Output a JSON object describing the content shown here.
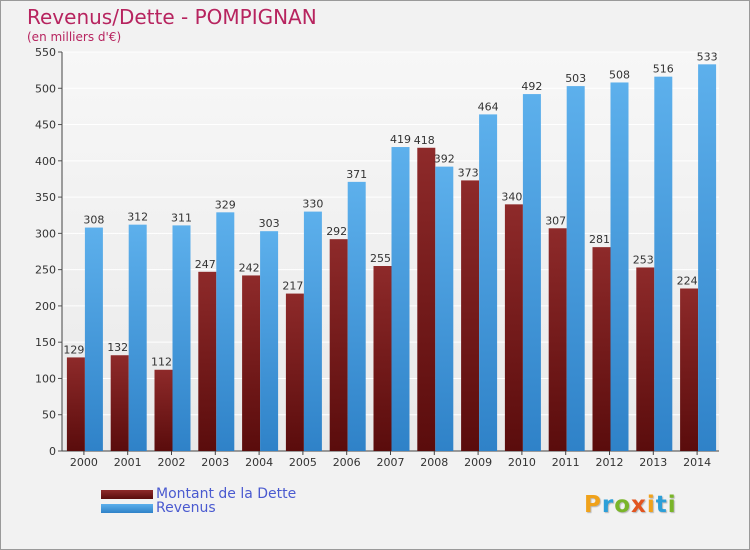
{
  "chart_data": {
    "type": "bar",
    "title": "Revenus/Dette - POMPIGNAN",
    "subtitle": "(en milliers d'€)",
    "categories": [
      "2000",
      "2001",
      "2002",
      "2003",
      "2004",
      "2005",
      "2006",
      "2007",
      "2008",
      "2009",
      "2010",
      "2011",
      "2012",
      "2013",
      "2014"
    ],
    "series": [
      {
        "name": "Montant de la Dette",
        "values": [
          129,
          132,
          112,
          247,
          242,
          217,
          292,
          255,
          418,
          373,
          340,
          307,
          281,
          253,
          224
        ],
        "color": "#7a1c1c"
      },
      {
        "name": "Revenus",
        "values": [
          308,
          312,
          311,
          329,
          303,
          330,
          371,
          419,
          392,
          464,
          492,
          503,
          508,
          516,
          533
        ],
        "color": "#4ea2e2"
      }
    ],
    "ylim": [
      0,
      550
    ],
    "yticks": [
      0,
      50,
      100,
      150,
      200,
      250,
      300,
      350,
      400,
      450,
      500,
      550
    ],
    "grid": true,
    "legend_position": "bottom-left"
  },
  "logo": {
    "letters": [
      "P",
      "r",
      "o",
      "x",
      "i",
      "t",
      "i"
    ],
    "colors": [
      "#f0a21b",
      "#2c9fd8",
      "#7ab529",
      "#e2541f",
      "#f0a21b",
      "#2c9fd8",
      "#7ab529"
    ]
  }
}
